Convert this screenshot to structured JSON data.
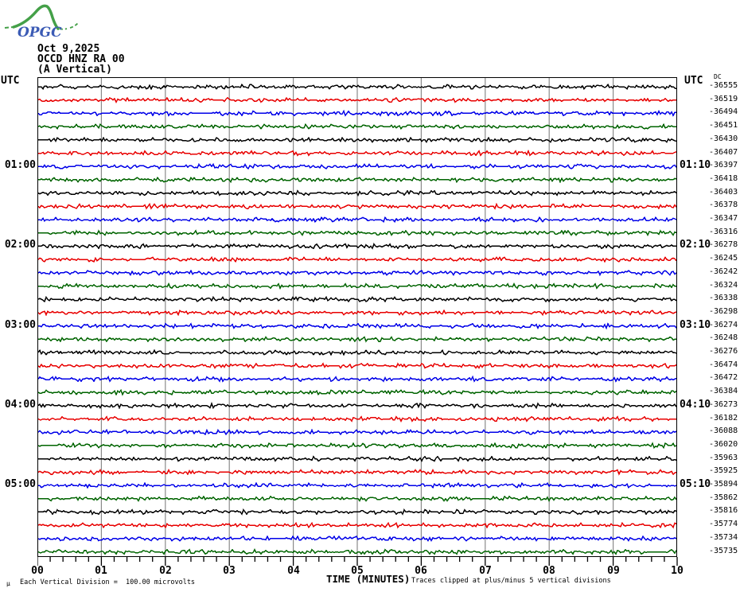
{
  "logo": {
    "text": "OPGC"
  },
  "header": {
    "line1": "Oct 9,2025",
    "line2": "OCCD HNZ RA 00",
    "line3": "(A Vertical)"
  },
  "axes": {
    "left_label": "UTC",
    "right_label": "UTC",
    "dc_header": "DC",
    "left_hours": [
      {
        "row": 6,
        "label": "01:00"
      },
      {
        "row": 12,
        "label": "02:00"
      },
      {
        "row": 18,
        "label": "03:00"
      },
      {
        "row": 24,
        "label": "04:00"
      },
      {
        "row": 30,
        "label": "05:00"
      }
    ],
    "right_hours": [
      {
        "row": 6,
        "label": "01:10"
      },
      {
        "row": 12,
        "label": "02:10"
      },
      {
        "row": 18,
        "label": "03:10"
      },
      {
        "row": 24,
        "label": "04:10"
      },
      {
        "row": 30,
        "label": "05:10"
      }
    ],
    "x_ticks": [
      "00",
      "01",
      "02",
      "03",
      "04",
      "05",
      "06",
      "07",
      "08",
      "09",
      "10"
    ],
    "x_title": "TIME (MINUTES)"
  },
  "footer": {
    "micro_mark": "μ",
    "scale_note": "Each Vertical Division =  100.00 microvolts",
    "clip_note": "Traces clipped at plus/minus 5 vertical divisions"
  },
  "colors": {
    "grid": "#8a8a8a",
    "trace_map": {
      "black": "#000000",
      "red": "#e80000",
      "blue": "#0000e8",
      "green": "#006400"
    },
    "logo_green": "#44a048",
    "logo_blue": "#3b5bb5"
  },
  "chart_data": {
    "type": "line",
    "subtype": "helicorder-seismogram",
    "title": "OCCD HNZ RA 00 (A Vertical) — Oct 9,2025",
    "xlabel": "TIME (MINUTES)",
    "x_range_minutes": [
      0,
      10
    ],
    "minor_ticks_per_minute": 5,
    "row_duration_minutes": 10,
    "trace_color_cycle": [
      "black",
      "red",
      "blue",
      "green"
    ],
    "amplitude_scale": "Each Vertical Division = 100.00 microvolts",
    "clipping": "Traces clipped at plus/minus 5 vertical divisions",
    "waveform_character": "flat low-amplitude background noise on every row, no seismic events visible",
    "rows": [
      {
        "start": "00:00",
        "end": "00:10",
        "color": "black",
        "dc": -36555
      },
      {
        "start": "00:10",
        "end": "00:20",
        "color": "red",
        "dc": -36519
      },
      {
        "start": "00:20",
        "end": "00:30",
        "color": "blue",
        "dc": -36494
      },
      {
        "start": "00:30",
        "end": "00:40",
        "color": "green",
        "dc": -36451
      },
      {
        "start": "00:40",
        "end": "00:50",
        "color": "black",
        "dc": -36430
      },
      {
        "start": "00:50",
        "end": "01:00",
        "color": "red",
        "dc": -36407
      },
      {
        "start": "01:00",
        "end": "01:10",
        "color": "blue",
        "dc": -36397
      },
      {
        "start": "01:10",
        "end": "01:20",
        "color": "green",
        "dc": -36418
      },
      {
        "start": "01:20",
        "end": "01:30",
        "color": "black",
        "dc": -36403
      },
      {
        "start": "01:30",
        "end": "01:40",
        "color": "red",
        "dc": -36378
      },
      {
        "start": "01:40",
        "end": "01:50",
        "color": "blue",
        "dc": -36347
      },
      {
        "start": "01:50",
        "end": "02:00",
        "color": "green",
        "dc": -36316
      },
      {
        "start": "02:00",
        "end": "02:10",
        "color": "black",
        "dc": -36278
      },
      {
        "start": "02:10",
        "end": "02:20",
        "color": "red",
        "dc": -36245
      },
      {
        "start": "02:20",
        "end": "02:30",
        "color": "blue",
        "dc": -36242
      },
      {
        "start": "02:30",
        "end": "02:40",
        "color": "green",
        "dc": -36324
      },
      {
        "start": "02:40",
        "end": "02:50",
        "color": "black",
        "dc": -36338
      },
      {
        "start": "02:50",
        "end": "03:00",
        "color": "red",
        "dc": -36298
      },
      {
        "start": "03:00",
        "end": "03:10",
        "color": "blue",
        "dc": -36274
      },
      {
        "start": "03:10",
        "end": "03:20",
        "color": "green",
        "dc": -36248
      },
      {
        "start": "03:20",
        "end": "03:30",
        "color": "black",
        "dc": -36276
      },
      {
        "start": "03:30",
        "end": "03:40",
        "color": "red",
        "dc": -36474
      },
      {
        "start": "03:40",
        "end": "03:50",
        "color": "blue",
        "dc": -36472
      },
      {
        "start": "03:50",
        "end": "04:00",
        "color": "green",
        "dc": -36384
      },
      {
        "start": "04:00",
        "end": "04:10",
        "color": "black",
        "dc": -36273
      },
      {
        "start": "04:10",
        "end": "04:20",
        "color": "red",
        "dc": -36182
      },
      {
        "start": "04:20",
        "end": "04:30",
        "color": "blue",
        "dc": -36088
      },
      {
        "start": "04:30",
        "end": "04:40",
        "color": "green",
        "dc": -36020
      },
      {
        "start": "04:40",
        "end": "04:50",
        "color": "black",
        "dc": -35963
      },
      {
        "start": "04:50",
        "end": "05:00",
        "color": "red",
        "dc": -35925
      },
      {
        "start": "05:00",
        "end": "05:10",
        "color": "blue",
        "dc": -35894
      },
      {
        "start": "05:10",
        "end": "05:20",
        "color": "green",
        "dc": -35862
      },
      {
        "start": "05:20",
        "end": "05:30",
        "color": "black",
        "dc": -35816
      },
      {
        "start": "05:30",
        "end": "05:40",
        "color": "red",
        "dc": -35774
      },
      {
        "start": "05:40",
        "end": "05:50",
        "color": "blue",
        "dc": -35734
      },
      {
        "start": "05:50",
        "end": "06:00",
        "color": "green",
        "dc": -35735
      }
    ]
  }
}
